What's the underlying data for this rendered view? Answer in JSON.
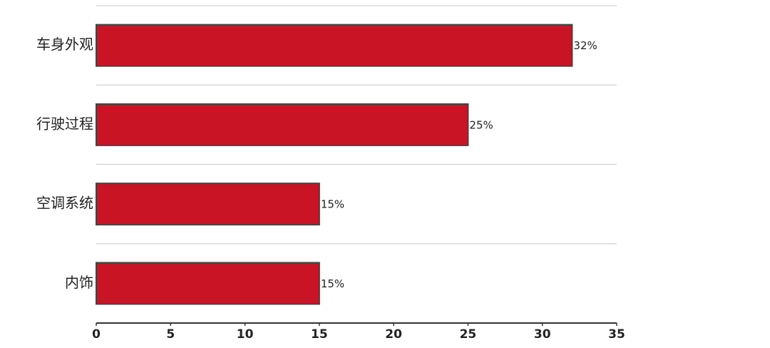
{
  "chart_data": {
    "type": "bar",
    "orientation": "horizontal",
    "categories": [
      "车身外观",
      "行驶过程",
      "空调系统",
      "内饰"
    ],
    "values": [
      32,
      25,
      15,
      15
    ],
    "value_labels": [
      "32%",
      "25%",
      "15%",
      "15%"
    ],
    "color": "#c91425",
    "xlim": [
      0,
      35
    ],
    "xticks": [
      0,
      5,
      10,
      15,
      20,
      25,
      30,
      35
    ]
  }
}
